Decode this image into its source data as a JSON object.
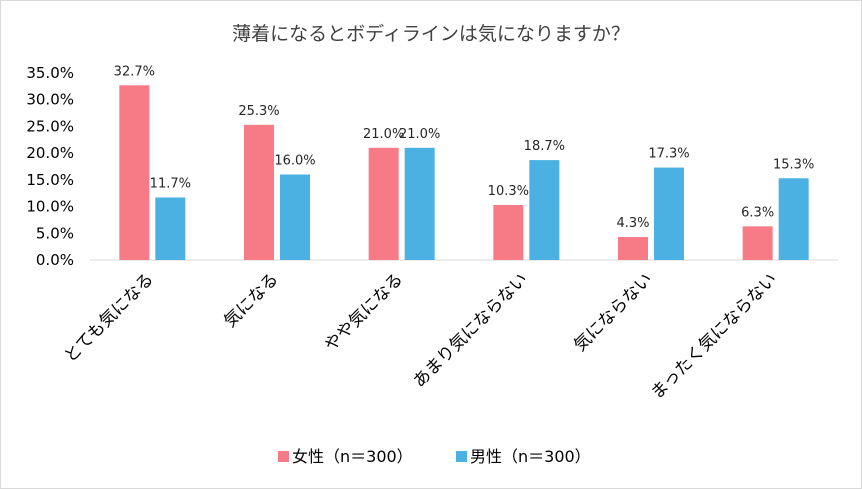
{
  "chart_data": {
    "type": "bar",
    "title": "薄着になるとボディラインは気になりますか？",
    "categories": [
      "とても気になる",
      "気になる",
      "やや気になる",
      "あまり気にならない",
      "気にならない",
      "まったく気にならない"
    ],
    "series": [
      {
        "name": "女性（n＝300）",
        "color": "#f77b86",
        "values": [
          32.7,
          25.3,
          21.0,
          10.3,
          4.3,
          6.3
        ]
      },
      {
        "name": "男性（n＝300）",
        "color": "#4bb1e2",
        "values": [
          11.7,
          16.0,
          21.0,
          18.7,
          17.3,
          15.3
        ]
      }
    ],
    "ylim": [
      0,
      35
    ],
    "yticks": [
      0,
      5,
      10,
      15,
      20,
      25,
      30,
      35
    ],
    "value_format": "0.0%",
    "grid": false,
    "legend": "bottom",
    "xlabel": "",
    "ylabel": ""
  }
}
